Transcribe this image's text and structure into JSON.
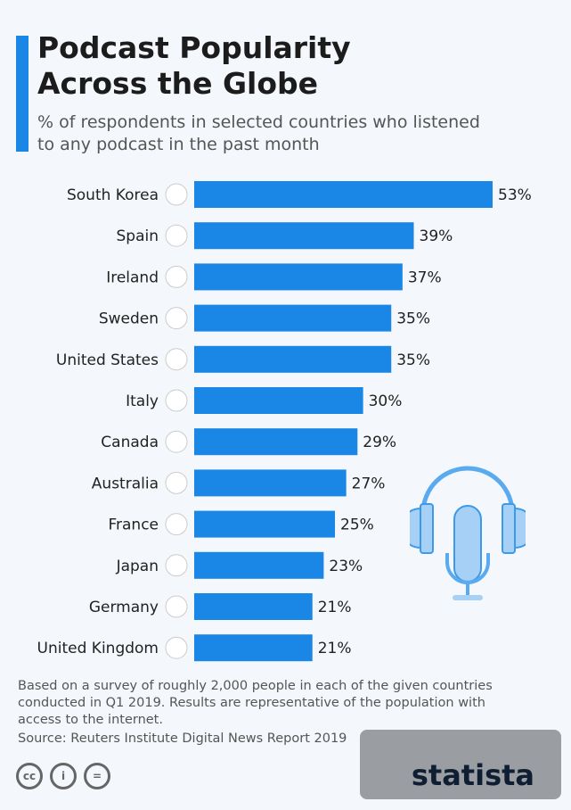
{
  "title": "Podcast Popularity Across the Globe",
  "subtitle": "% of respondents in selected countries who listened to any podcast in the past month",
  "note": "Based on a survey of roughly 2,000 people in each of the given countries conducted in Q1 2019. Results are representative of the population with access to the internet.",
  "source": "Source: Reuters Institute Digital News Report 2019",
  "logo": "statista",
  "license_icons": [
    "cc-icon",
    "by-icon",
    "nd-icon"
  ],
  "colors": {
    "bar": "#1a87e6",
    "accent": "#1a87e6"
  },
  "chart_data": {
    "type": "bar",
    "orientation": "horizontal",
    "categories": [
      "South Korea",
      "Spain",
      "Ireland",
      "Sweden",
      "United States",
      "Italy",
      "Canada",
      "Australia",
      "France",
      "Japan",
      "Germany",
      "United Kingdom"
    ],
    "values": [
      53,
      39,
      37,
      35,
      35,
      30,
      29,
      27,
      25,
      23,
      21,
      21
    ],
    "data_labels": [
      "53%",
      "39%",
      "37%",
      "35%",
      "35%",
      "30%",
      "29%",
      "27%",
      "25%",
      "23%",
      "21%",
      "21%"
    ],
    "xlim": [
      0,
      53
    ],
    "grid": false
  }
}
